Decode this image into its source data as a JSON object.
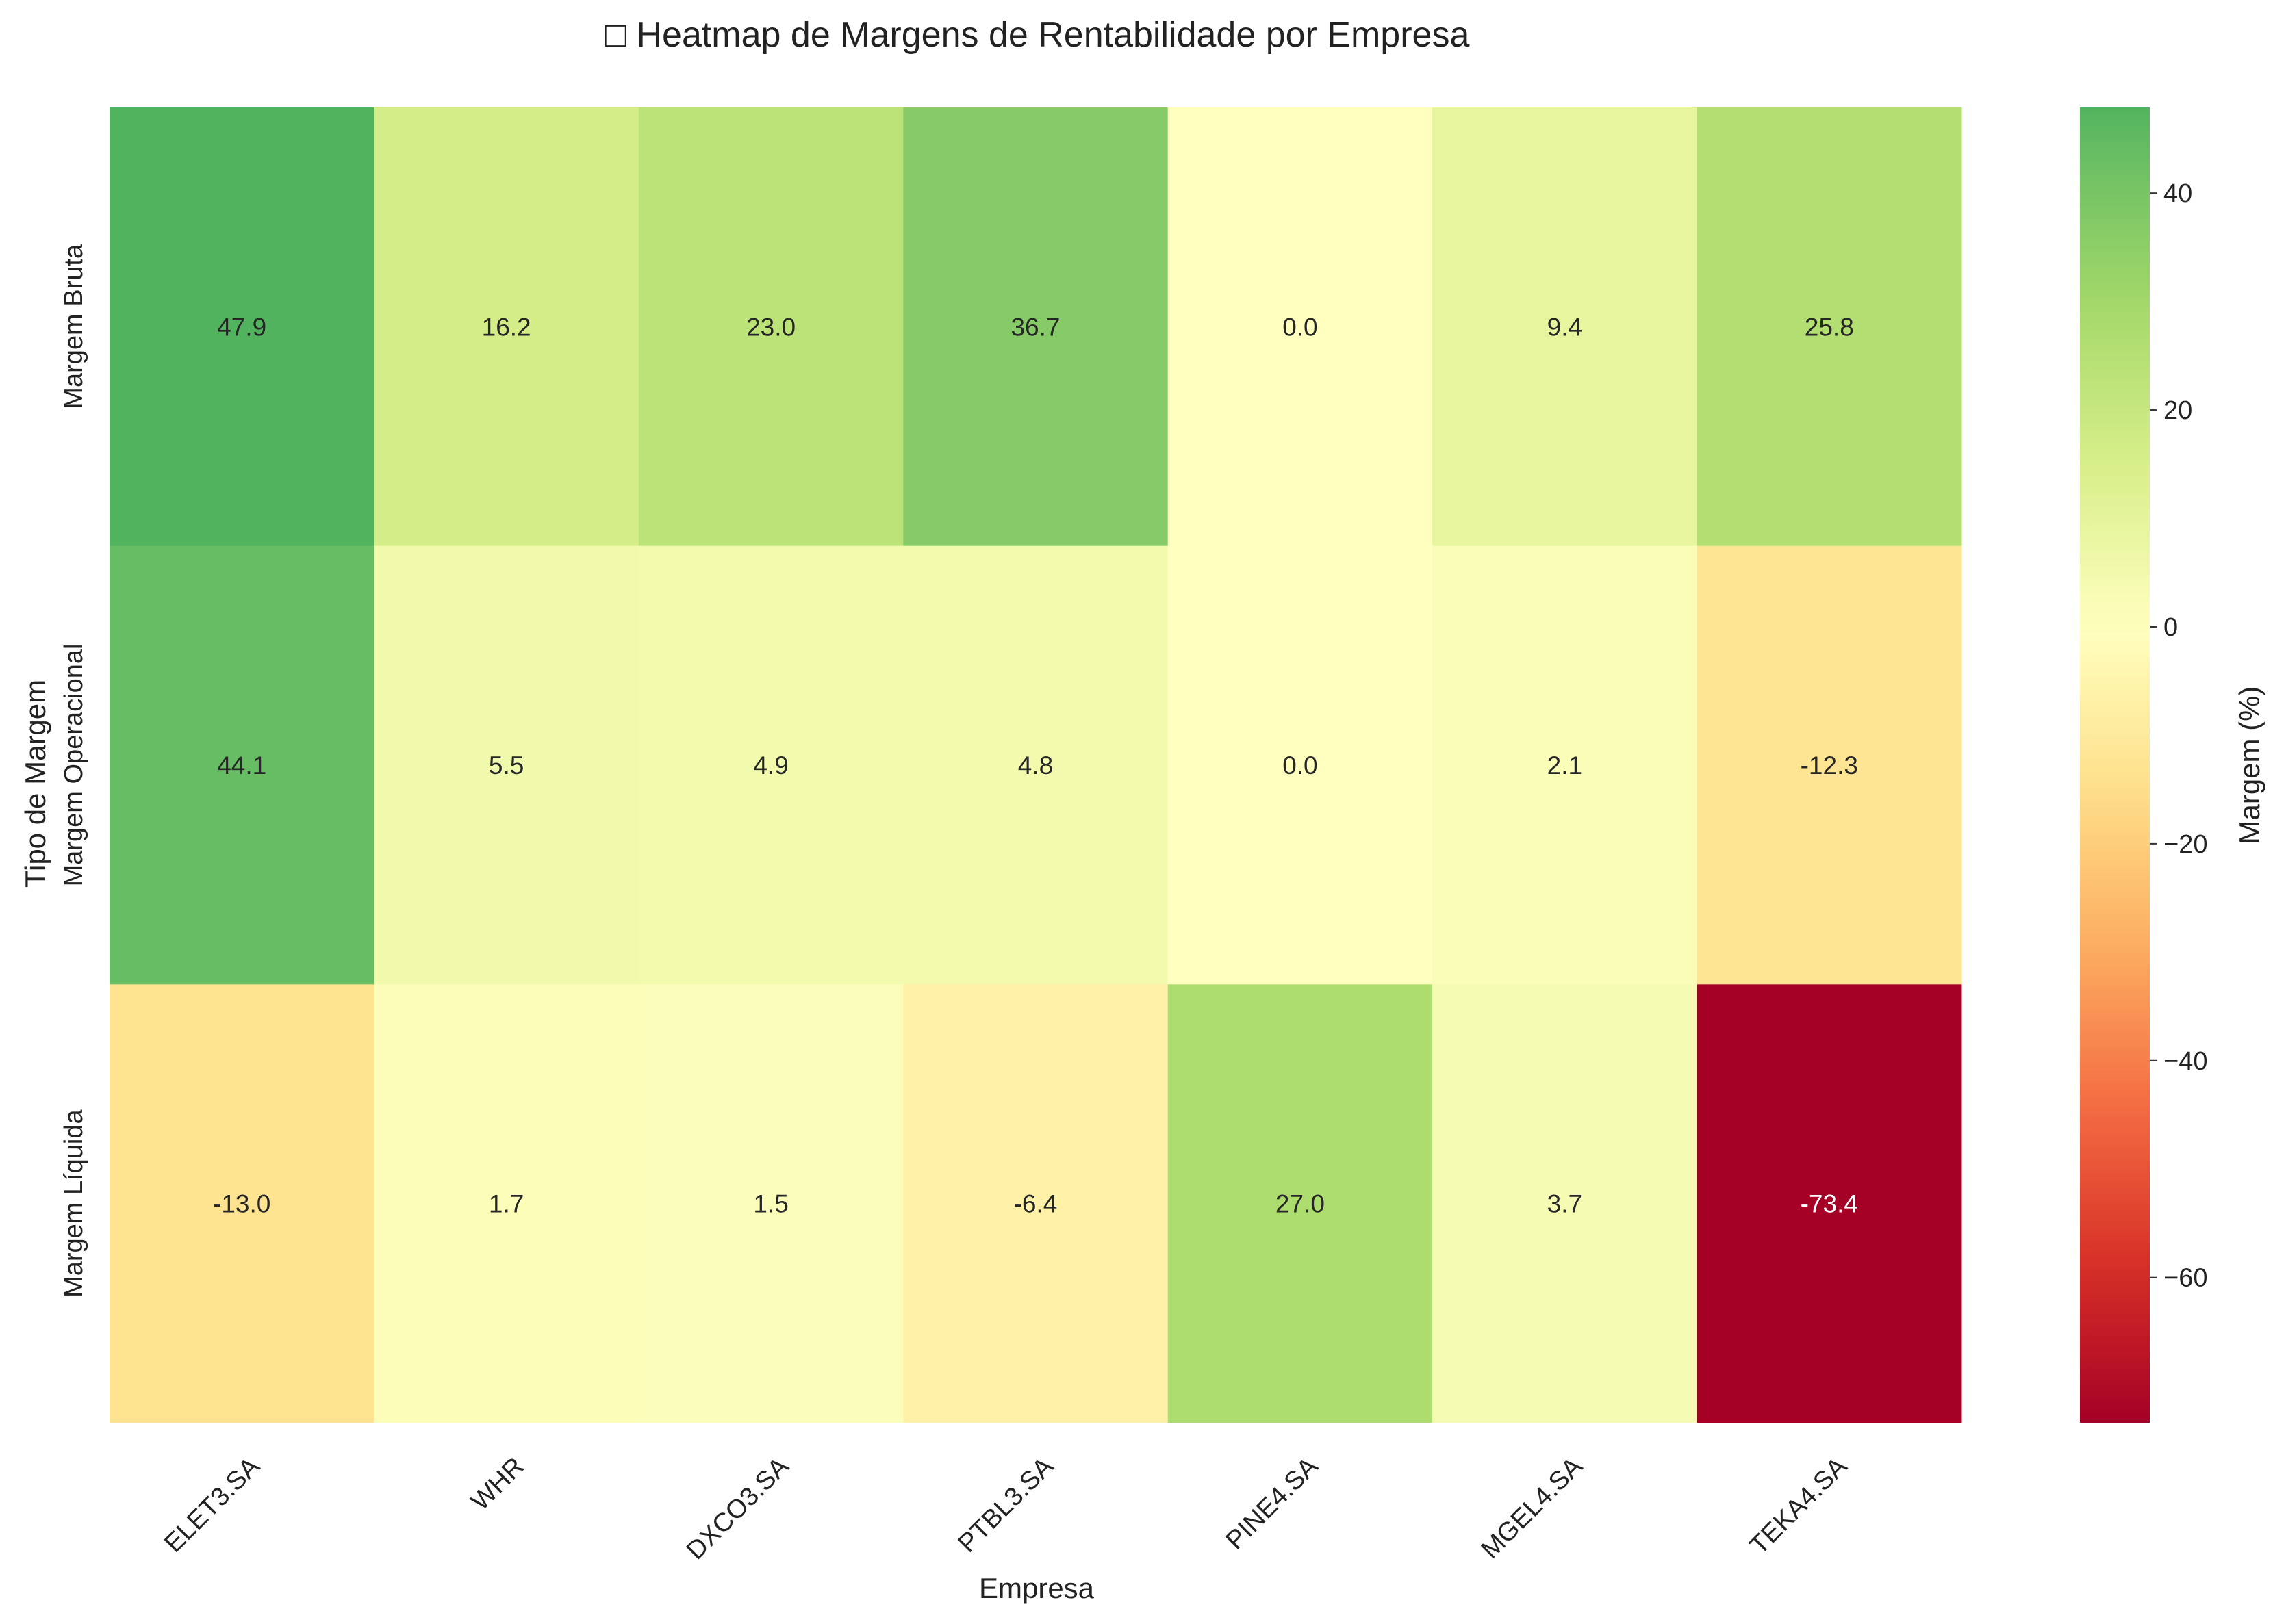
{
  "chart_data": {
    "type": "heatmap",
    "title": "□ Heatmap de Margens de Rentabilidade por Empresa",
    "xlabel": "Empresa",
    "ylabel": "Tipo de Margem",
    "colorbar_label": "Margem (%)",
    "x_categories": [
      "ELET3.SA",
      "WHR",
      "DXCO3.SA",
      "PTBL3.SA",
      "PINE4.SA",
      "MGEL4.SA",
      "TEKA4.SA"
    ],
    "y_categories": [
      "Margem Bruta",
      "Margem Operacional",
      "Margem Líquida"
    ],
    "values": [
      [
        47.9,
        16.2,
        23.0,
        36.7,
        0.0,
        9.4,
        25.8
      ],
      [
        44.1,
        5.5,
        4.9,
        4.8,
        0.0,
        2.1,
        -12.3
      ],
      [
        -13.0,
        1.7,
        1.5,
        -6.4,
        27.0,
        3.7,
        -73.4
      ]
    ],
    "value_format": "0.1f",
    "colormap": "RdYlGn",
    "center": 0,
    "vmin": -73.4,
    "vmax": 47.9,
    "colorbar_ticks": [
      40,
      20,
      0,
      -20,
      -40,
      -60
    ],
    "colorbar_tick_labels": [
      "40",
      "20",
      "0",
      "−20",
      "−40",
      "−60"
    ],
    "grid": false,
    "legend": "colorbar right"
  }
}
